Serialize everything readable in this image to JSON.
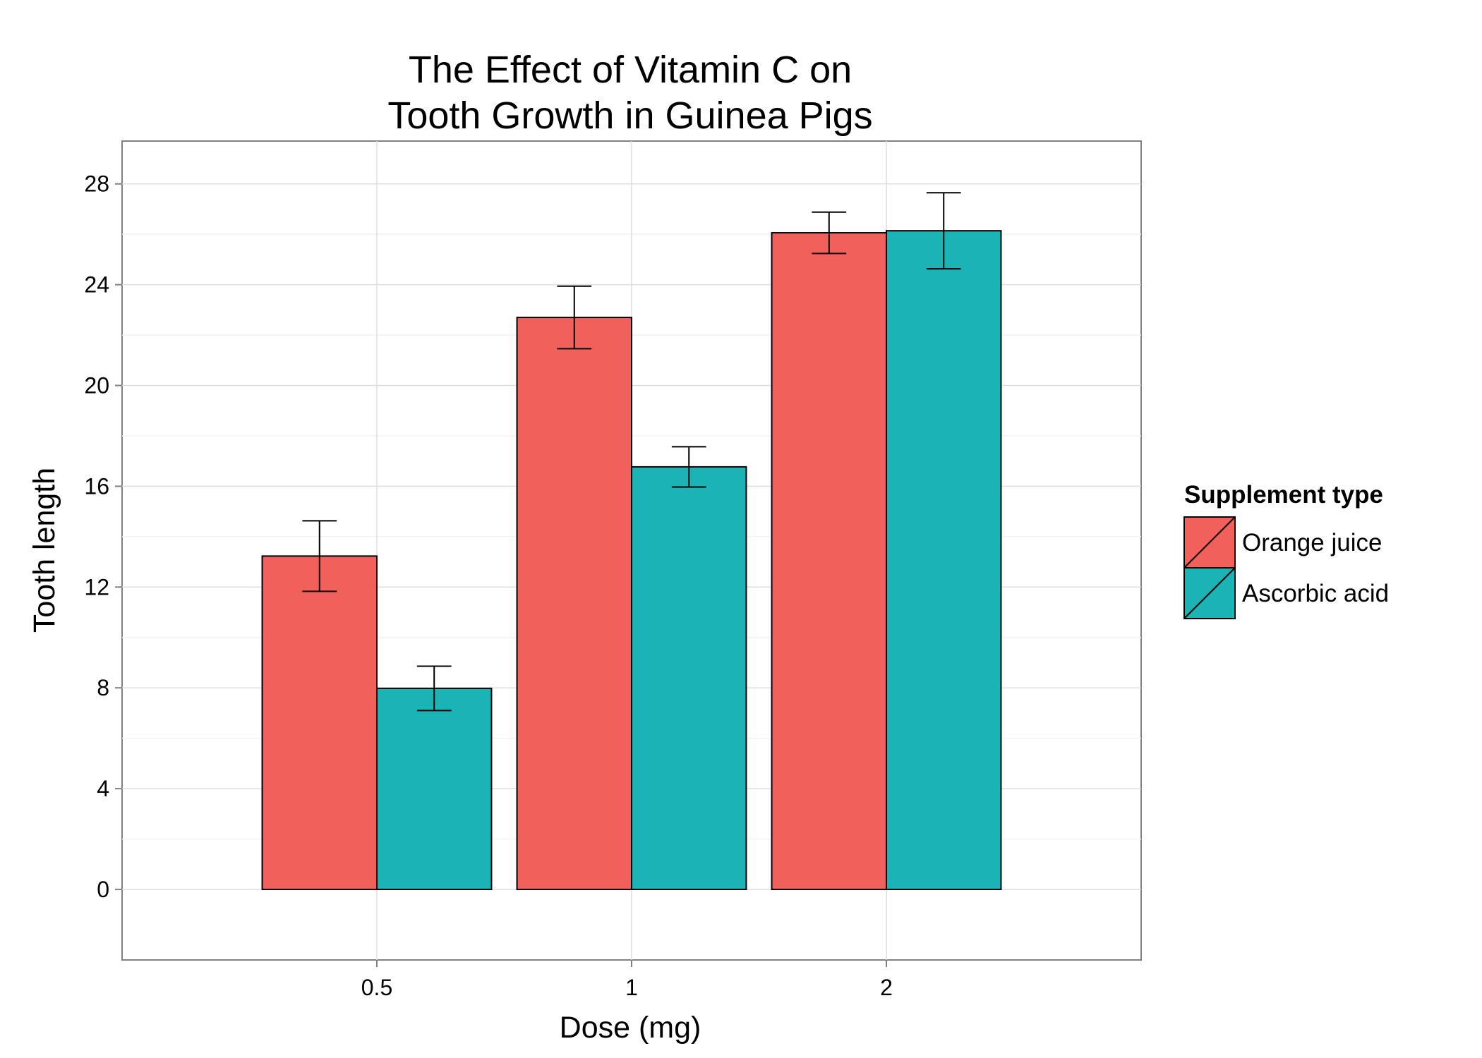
{
  "chart_data": {
    "type": "bar",
    "title_lines": [
      "The Effect of Vitamin C on",
      "Tooth Growth in Guinea Pigs"
    ],
    "xlabel": "Dose (mg)",
    "ylabel": "Tooth length",
    "categories": [
      "0.5",
      "1",
      "2"
    ],
    "ylim": [
      -2.8,
      29.7
    ],
    "yticks": [
      0,
      4,
      8,
      12,
      16,
      20,
      24,
      28
    ],
    "grid": true,
    "legend": {
      "title": "Supplement type",
      "placement": "right"
    },
    "series": [
      {
        "name": "Orange juice",
        "color": "#F2605B",
        "values": [
          13.23,
          22.7,
          26.06
        ],
        "error_low": [
          11.83,
          21.46,
          25.24
        ],
        "error_high": [
          14.63,
          23.94,
          26.88
        ]
      },
      {
        "name": "Ascorbic acid",
        "color": "#1AB3B6",
        "values": [
          7.98,
          16.77,
          26.14
        ],
        "error_low": [
          7.1,
          15.97,
          24.63
        ],
        "error_high": [
          8.86,
          17.57,
          27.65
        ]
      }
    ]
  }
}
